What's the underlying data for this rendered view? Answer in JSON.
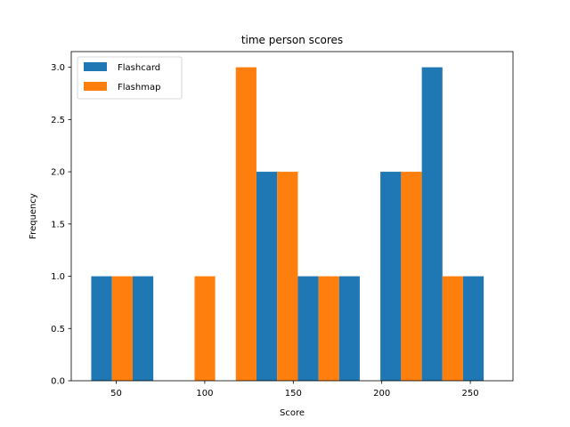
{
  "chart_data": {
    "type": "bar",
    "title": "time person scores",
    "xlabel": "Score",
    "ylabel": "Frequency",
    "xlim": [
      24.6,
      274.1
    ],
    "ylim": [
      0,
      3.15
    ],
    "xticks": [
      "50",
      "100",
      "150",
      "200",
      "250"
    ],
    "xtick_values": [
      50,
      100,
      150,
      200,
      250
    ],
    "yticks": [
      "0.0",
      "0.5",
      "1.0",
      "1.5",
      "2.0",
      "2.5",
      "3.0"
    ],
    "ytick_values": [
      0,
      0.5,
      1.0,
      1.5,
      2.0,
      2.5,
      3.0
    ],
    "bin_edges": [
      35.9,
      59.3,
      82.6,
      105.9,
      129.2,
      152.6,
      175.9,
      199.2,
      222.6,
      245.9,
      269.2
    ],
    "grid": false,
    "legend_position": "upper left",
    "series": [
      {
        "name": "Flashcard",
        "color": "#1f77b4",
        "values": [
          1,
          1,
          0,
          0,
          2,
          1,
          1,
          2,
          3,
          1
        ]
      },
      {
        "name": "Flashmap",
        "color": "#ff7f0e",
        "values": [
          1,
          0,
          1,
          3,
          2,
          1,
          0,
          2,
          1,
          0
        ]
      }
    ]
  }
}
